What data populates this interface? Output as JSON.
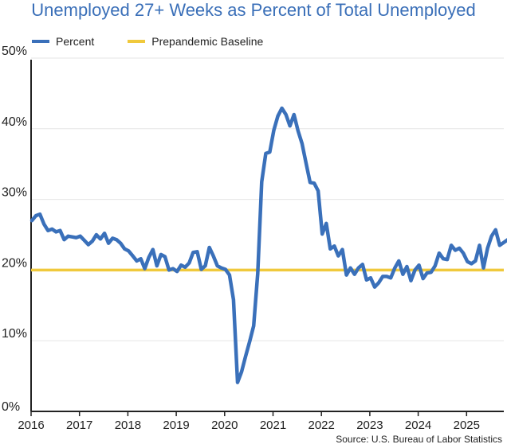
{
  "chart_data": {
    "type": "line",
    "title": "Unemployed 27+ Weeks as Percent of Total Unemployed",
    "source": "Source: U.S. Bureau of Labor Statistics",
    "xlabel": "",
    "ylabel": "",
    "x_ticks": [
      "2016",
      "2017",
      "2018",
      "2019",
      "2020",
      "2021",
      "2022",
      "2023",
      "2024",
      "2025"
    ],
    "y_ticks": [
      "0%",
      "10%",
      "20%",
      "30%",
      "40%",
      "50%"
    ],
    "ylim": [
      0,
      50
    ],
    "grid": "horizontal",
    "legend_position": "top-left",
    "x_start": "2016-01",
    "frequency": "monthly",
    "series": [
      {
        "name": "Percent",
        "color": "#3a70ba",
        "values": [
          27.0,
          27.7,
          27.9,
          26.5,
          25.6,
          25.8,
          25.4,
          25.6,
          24.3,
          24.8,
          24.7,
          24.6,
          24.8,
          24.2,
          23.6,
          24.1,
          25.0,
          24.4,
          25.2,
          23.8,
          24.5,
          24.3,
          23.8,
          23.0,
          22.7,
          22.0,
          21.3,
          21.6,
          20.2,
          21.8,
          22.9,
          20.6,
          22.2,
          21.9,
          20.0,
          20.2,
          19.8,
          20.7,
          20.4,
          21.0,
          22.5,
          22.6,
          20.1,
          20.6,
          23.2,
          22.0,
          20.6,
          20.3,
          20.1,
          19.3,
          15.8,
          4.1,
          5.6,
          7.8,
          9.9,
          12.1,
          19.5,
          32.5,
          36.5,
          36.7,
          39.8,
          41.8,
          42.9,
          42.0,
          40.4,
          42.0,
          39.7,
          37.9,
          35.1,
          32.4,
          32.3,
          31.2,
          25.1,
          26.6,
          23.0,
          23.4,
          22.0,
          22.9,
          19.3,
          20.3,
          19.4,
          20.3,
          20.8,
          18.6,
          18.9,
          17.6,
          18.2,
          19.1,
          19.1,
          18.9,
          20.3,
          21.3,
          19.4,
          20.5,
          18.5,
          20.0,
          20.7,
          18.8,
          19.6,
          19.7,
          20.6,
          22.4,
          21.6,
          21.5,
          23.5,
          22.8,
          23.1,
          22.4,
          21.2,
          20.9,
          21.3,
          23.5,
          20.3,
          23.1,
          24.8,
          25.7,
          23.5,
          23.9,
          24.3
        ]
      },
      {
        "name": "Prepandemic Baseline",
        "color": "#f0c93c",
        "value": 20
      }
    ]
  }
}
